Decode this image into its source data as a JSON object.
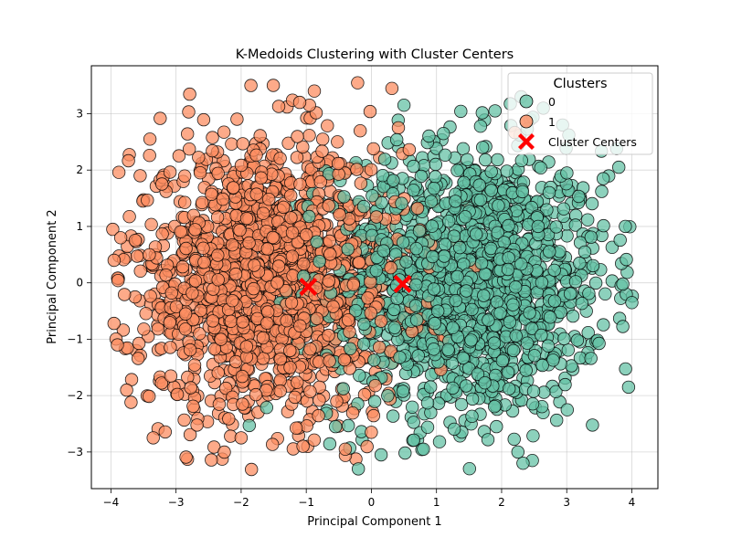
{
  "chart_data": {
    "type": "scatter",
    "title": "K-Medoids Clustering with Cluster Centers",
    "xlabel": "Principal Component 1",
    "ylabel": "Principal Component 2",
    "xlim": [
      -4.3,
      4.4
    ],
    "ylim": [
      -3.65,
      3.85
    ],
    "xticks": [
      -4,
      -3,
      -2,
      -1,
      0,
      1,
      2,
      3,
      4
    ],
    "yticks": [
      -3,
      -2,
      -1,
      0,
      1,
      2,
      3
    ],
    "grid": true,
    "legend": {
      "title": "Clusters",
      "placement": "top-right",
      "entries": [
        "0",
        "1",
        "Cluster Centers"
      ]
    },
    "colors": {
      "cluster_0": "#66c2a5",
      "cluster_1": "#fc8d62",
      "centers": "#ff0000",
      "edge": "#000000"
    },
    "clusters": [
      {
        "name": "0",
        "center_estimate": [
          1.5,
          0.0
        ],
        "spread": [
          1.05,
          1.2
        ],
        "count_estimate": 1500,
        "outliers": [
          [
            -0.2,
            -3.3
          ],
          [
            0.15,
            -3.05
          ],
          [
            0.8,
            -2.95
          ],
          [
            2.25,
            -3.0
          ],
          [
            3.95,
            -1.85
          ],
          [
            4.0,
            -0.35
          ],
          [
            3.8,
            2.05
          ],
          [
            3.9,
            1.0
          ],
          [
            0.5,
            3.15
          ],
          [
            2.3,
            3.3
          ],
          [
            1.9,
            3.05
          ],
          [
            -0.55,
            -2.55
          ]
        ]
      },
      {
        "name": "1",
        "center_estimate": [
          -1.6,
          0.05
        ],
        "spread": [
          1.05,
          1.2
        ],
        "count_estimate": 1500,
        "outliers": [
          [
            -1.85,
            3.5
          ],
          [
            -3.35,
            -2.75
          ],
          [
            -3.95,
            0.4
          ],
          [
            -3.9,
            -1.1
          ],
          [
            -3.85,
            0.8
          ],
          [
            -0.95,
            3.15
          ],
          [
            -1.1,
            3.2
          ],
          [
            -3.4,
            2.55
          ],
          [
            -2.0,
            -2.75
          ],
          [
            -0.4,
            -2.95
          ],
          [
            0.0,
            -2.65
          ],
          [
            -3.55,
            1.9
          ]
        ]
      }
    ],
    "centers": [
      {
        "cluster": "0",
        "x": 0.48,
        "y": -0.02
      },
      {
        "cluster": "1",
        "x": -0.97,
        "y": -0.07
      }
    ]
  }
}
